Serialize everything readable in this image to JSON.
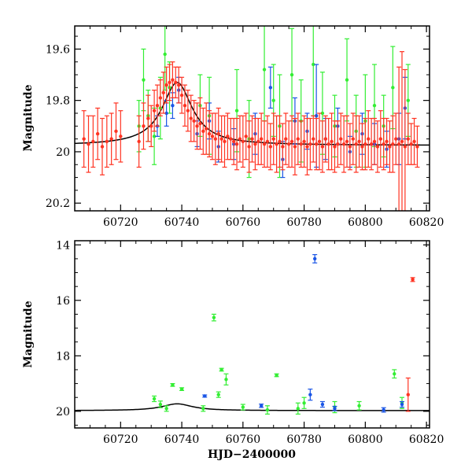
{
  "colors": {
    "green": "#33ee33",
    "blue": "#1a55e6",
    "red": "#ff3322",
    "model": "#000000",
    "axes": "#000000"
  },
  "chart_data": [
    {
      "type": "scatter",
      "title": "",
      "xlabel": "",
      "ylabel": "Magnitude",
      "xlim": [
        60705,
        60821
      ],
      "ylim": [
        20.23,
        19.51
      ],
      "y_inverted": true,
      "grid": false,
      "x_ticks": [
        60720,
        60740,
        60760,
        60780,
        60800,
        60820
      ],
      "x_tick_labels": [
        "60720",
        "60740",
        "60760",
        "60780",
        "60800",
        "60820"
      ],
      "y_ticks": [
        19.6,
        19.8,
        20,
        20.2
      ],
      "y_tick_labels": [
        "19.6",
        "19.8",
        "20",
        "20.2"
      ],
      "model_curve": {
        "baseline": 19.975,
        "peak": 19.73,
        "t0": 60738.5,
        "tE": 6.0
      },
      "series": [
        {
          "color": "green",
          "points": [
            [
              60726,
              19.9,
              0.1
            ],
            [
              60727.5,
              19.72,
              0.12
            ],
            [
              60729,
              19.86,
              0.1
            ],
            [
              60731,
              19.94,
              0.11
            ],
            [
              60733,
              19.83,
              0.12
            ],
            [
              60734.5,
              19.62,
              0.14
            ],
            [
              60736,
              19.75,
              0.1
            ],
            [
              60746,
              19.82,
              0.12
            ],
            [
              60749,
              19.86,
              0.15
            ],
            [
              60758,
              19.84,
              0.16
            ],
            [
              60762,
              19.95,
              0.15
            ],
            [
              60767,
              19.68,
              0.2
            ],
            [
              60770,
              19.8,
              0.14
            ],
            [
              60772,
              19.9,
              0.2
            ],
            [
              60776,
              19.7,
              0.18
            ],
            [
              60779,
              19.88,
              0.16
            ],
            [
              60783,
              19.66,
              0.2
            ],
            [
              60786,
              19.85,
              0.16
            ],
            [
              60790,
              19.9,
              0.12
            ],
            [
              60794,
              19.72,
              0.16
            ],
            [
              60797,
              19.92,
              0.14
            ],
            [
              60800,
              19.88,
              0.18
            ],
            [
              60803,
              19.82,
              0.16
            ],
            [
              60806,
              19.9,
              0.12
            ],
            [
              60809,
              19.75,
              0.16
            ],
            [
              60814,
              19.8,
              0.14
            ]
          ]
        },
        {
          "color": "blue",
          "points": [
            [
              60732,
              19.9,
              0.04
            ],
            [
              60735,
              19.85,
              0.05
            ],
            [
              60737,
              19.82,
              0.05
            ],
            [
              60739,
              19.76,
              0.05
            ],
            [
              60745,
              19.93,
              0.05
            ],
            [
              60749,
              19.88,
              0.07
            ],
            [
              60752,
              19.98,
              0.06
            ],
            [
              60757,
              19.97,
              0.06
            ],
            [
              60764,
              19.93,
              0.08
            ],
            [
              60769,
              19.75,
              0.08
            ],
            [
              60773,
              20.03,
              0.07
            ],
            [
              60777,
              19.88,
              0.09
            ],
            [
              60781,
              19.92,
              0.07
            ],
            [
              60784,
              19.86,
              0.2
            ],
            [
              60787,
              19.95,
              0.08
            ],
            [
              60791,
              19.9,
              0.07
            ],
            [
              60795,
              20.0,
              0.06
            ],
            [
              60799,
              19.93,
              0.08
            ],
            [
              60803,
              19.97,
              0.08
            ],
            [
              60807,
              19.99,
              0.07
            ],
            [
              60811,
              19.95,
              0.1
            ],
            [
              60813,
              19.83,
              0.12
            ]
          ]
        },
        {
          "color": "red",
          "points": [
            [
              60708,
              19.95,
              0.11
            ],
            [
              60709.5,
              19.97,
              0.11
            ],
            [
              60711,
              19.96,
              0.1
            ],
            [
              60712.5,
              19.93,
              0.1
            ],
            [
              60714,
              19.98,
              0.11
            ],
            [
              60715.5,
              19.96,
              0.1
            ],
            [
              60717,
              19.95,
              0.1
            ],
            [
              60718.5,
              19.92,
              0.11
            ],
            [
              60720,
              19.94,
              0.1
            ],
            [
              60726,
              19.96,
              0.1
            ],
            [
              60727.5,
              19.9,
              0.09
            ],
            [
              60729,
              19.87,
              0.09
            ],
            [
              60730,
              19.9,
              0.08
            ],
            [
              60731,
              19.84,
              0.08
            ],
            [
              60732,
              19.82,
              0.08
            ],
            [
              60733,
              19.79,
              0.07
            ],
            [
              60734,
              19.77,
              0.08
            ],
            [
              60735,
              19.74,
              0.07
            ],
            [
              60736,
              19.73,
              0.07
            ],
            [
              60737,
              19.72,
              0.07
            ],
            [
              60738,
              19.73,
              0.06
            ],
            [
              60739,
              19.74,
              0.07
            ],
            [
              60740,
              19.78,
              0.07
            ],
            [
              60741,
              19.82,
              0.08
            ],
            [
              60742,
              19.84,
              0.08
            ],
            [
              60743,
              19.87,
              0.09
            ],
            [
              60744,
              19.88,
              0.08
            ],
            [
              60745,
              19.9,
              0.09
            ],
            [
              60746,
              19.89,
              0.1
            ],
            [
              60747,
              19.92,
              0.09
            ],
            [
              60748,
              19.91,
              0.1
            ],
            [
              60749,
              19.93,
              0.09
            ],
            [
              60750,
              19.94,
              0.09
            ],
            [
              60751,
              19.95,
              0.1
            ],
            [
              60752,
              19.93,
              0.1
            ],
            [
              60753,
              19.95,
              0.09
            ],
            [
              60754,
              19.96,
              0.1
            ],
            [
              60755,
              19.94,
              0.09
            ],
            [
              60756,
              19.95,
              0.08
            ],
            [
              60757,
              19.96,
              0.09
            ],
            [
              60758,
              19.97,
              0.1
            ],
            [
              60759,
              19.95,
              0.09
            ],
            [
              60760,
              19.96,
              0.1
            ],
            [
              60761,
              19.94,
              0.09
            ],
            [
              60762,
              19.98,
              0.1
            ],
            [
              60763,
              19.95,
              0.09
            ],
            [
              60764,
              19.97,
              0.1
            ],
            [
              60765,
              19.96,
              0.09
            ],
            [
              60766,
              19.95,
              0.1
            ],
            [
              60767,
              19.97,
              0.09
            ],
            [
              60768,
              19.96,
              0.1
            ],
            [
              60769,
              19.98,
              0.09
            ],
            [
              60770,
              19.95,
              0.1
            ],
            [
              60771,
              19.97,
              0.11
            ],
            [
              60772,
              19.96,
              0.1
            ],
            [
              60773,
              19.98,
              0.09
            ],
            [
              60774,
              19.95,
              0.1
            ],
            [
              60775,
              19.97,
              0.09
            ],
            [
              60776,
              19.96,
              0.1
            ],
            [
              60777,
              19.98,
              0.11
            ],
            [
              60778,
              19.95,
              0.1
            ],
            [
              60779,
              19.97,
              0.09
            ],
            [
              60780,
              19.96,
              0.1
            ],
            [
              60781,
              19.98,
              0.11
            ],
            [
              60782,
              19.97,
              0.1
            ],
            [
              60783,
              19.95,
              0.09
            ],
            [
              60784,
              19.97,
              0.1
            ],
            [
              60785,
              19.96,
              0.11
            ],
            [
              60786,
              19.98,
              0.1
            ],
            [
              60787,
              19.95,
              0.09
            ],
            [
              60788,
              19.97,
              0.1
            ],
            [
              60789,
              19.96,
              0.11
            ],
            [
              60790,
              19.98,
              0.1
            ],
            [
              60791,
              19.97,
              0.09
            ],
            [
              60792,
              19.95,
              0.1
            ],
            [
              60793,
              19.97,
              0.11
            ],
            [
              60794,
              19.96,
              0.1
            ],
            [
              60795,
              19.98,
              0.09
            ],
            [
              60796,
              19.95,
              0.1
            ],
            [
              60797,
              19.97,
              0.11
            ],
            [
              60798,
              19.96,
              0.1
            ],
            [
              60799,
              19.98,
              0.09
            ],
            [
              60800,
              19.97,
              0.1
            ],
            [
              60801,
              19.95,
              0.11
            ],
            [
              60802,
              19.97,
              0.1
            ],
            [
              60803,
              19.96,
              0.09
            ],
            [
              60804,
              19.98,
              0.1
            ],
            [
              60805,
              19.95,
              0.11
            ],
            [
              60806,
              19.97,
              0.1
            ],
            [
              60807,
              19.96,
              0.09
            ],
            [
              60808,
              19.98,
              0.1
            ],
            [
              60809,
              19.97,
              0.11
            ],
            [
              60810,
              19.95,
              0.1
            ],
            [
              60811,
              19.97,
              0.3
            ],
            [
              60812,
              19.96,
              0.35
            ],
            [
              60813,
              19.98,
              0.3
            ],
            [
              60814,
              19.95,
              0.1
            ],
            [
              60815,
              19.97,
              0.08
            ],
            [
              60816,
              19.96,
              0.09
            ],
            [
              60817,
              19.98,
              0.08
            ]
          ]
        }
      ]
    },
    {
      "type": "scatter",
      "title": "",
      "xlabel": "HJD−2400000",
      "ylabel": "Magnitude",
      "xlim": [
        60705,
        60821
      ],
      "ylim": [
        20.6,
        13.85
      ],
      "y_inverted": true,
      "grid": false,
      "x_ticks": [
        60720,
        60740,
        60760,
        60780,
        60800,
        60820
      ],
      "x_tick_labels": [
        "60720",
        "60740",
        "60760",
        "60780",
        "60800",
        "60820"
      ],
      "y_ticks": [
        14,
        16,
        18,
        20
      ],
      "y_tick_labels": [
        "14",
        "16",
        "18",
        "20"
      ],
      "model_curve": {
        "baseline": 19.975,
        "peak": 19.73,
        "t0": 60738.5,
        "tE": 6.0
      },
      "series": [
        {
          "color": "green",
          "points": [
            [
              60731,
              19.55,
              0.1
            ],
            [
              60733,
              19.75,
              0.12
            ],
            [
              60735,
              19.9,
              0.1
            ],
            [
              60737,
              19.05,
              0.05
            ],
            [
              60740,
              19.2,
              0.05
            ],
            [
              60747,
              19.9,
              0.1
            ],
            [
              60750.5,
              16.62,
              0.12
            ],
            [
              60752,
              19.4,
              0.1
            ],
            [
              60753,
              18.5,
              0.05
            ],
            [
              60754.5,
              18.85,
              0.2
            ],
            [
              60760,
              19.85,
              0.1
            ],
            [
              60768,
              19.95,
              0.15
            ],
            [
              60771,
              18.7,
              0.05
            ],
            [
              60778,
              19.9,
              0.2
            ],
            [
              60780,
              19.7,
              0.2
            ],
            [
              60790,
              19.85,
              0.2
            ],
            [
              60798,
              19.8,
              0.15
            ],
            [
              60809.5,
              18.65,
              0.15
            ],
            [
              60812,
              19.7,
              0.2
            ]
          ]
        },
        {
          "color": "blue",
          "points": [
            [
              60747.5,
              19.45,
              0.04
            ],
            [
              60766,
              19.8,
              0.06
            ],
            [
              60782,
              19.4,
              0.2
            ],
            [
              60783.5,
              14.5,
              0.15
            ],
            [
              60786,
              19.75,
              0.1
            ],
            [
              60790,
              19.9,
              0.08
            ],
            [
              60806,
              19.95,
              0.08
            ],
            [
              60812,
              19.75,
              0.1
            ]
          ]
        },
        {
          "color": "red",
          "points": [
            [
              60815.5,
              15.25,
              0.07
            ],
            [
              60814,
              19.4,
              0.6
            ]
          ]
        }
      ]
    }
  ]
}
